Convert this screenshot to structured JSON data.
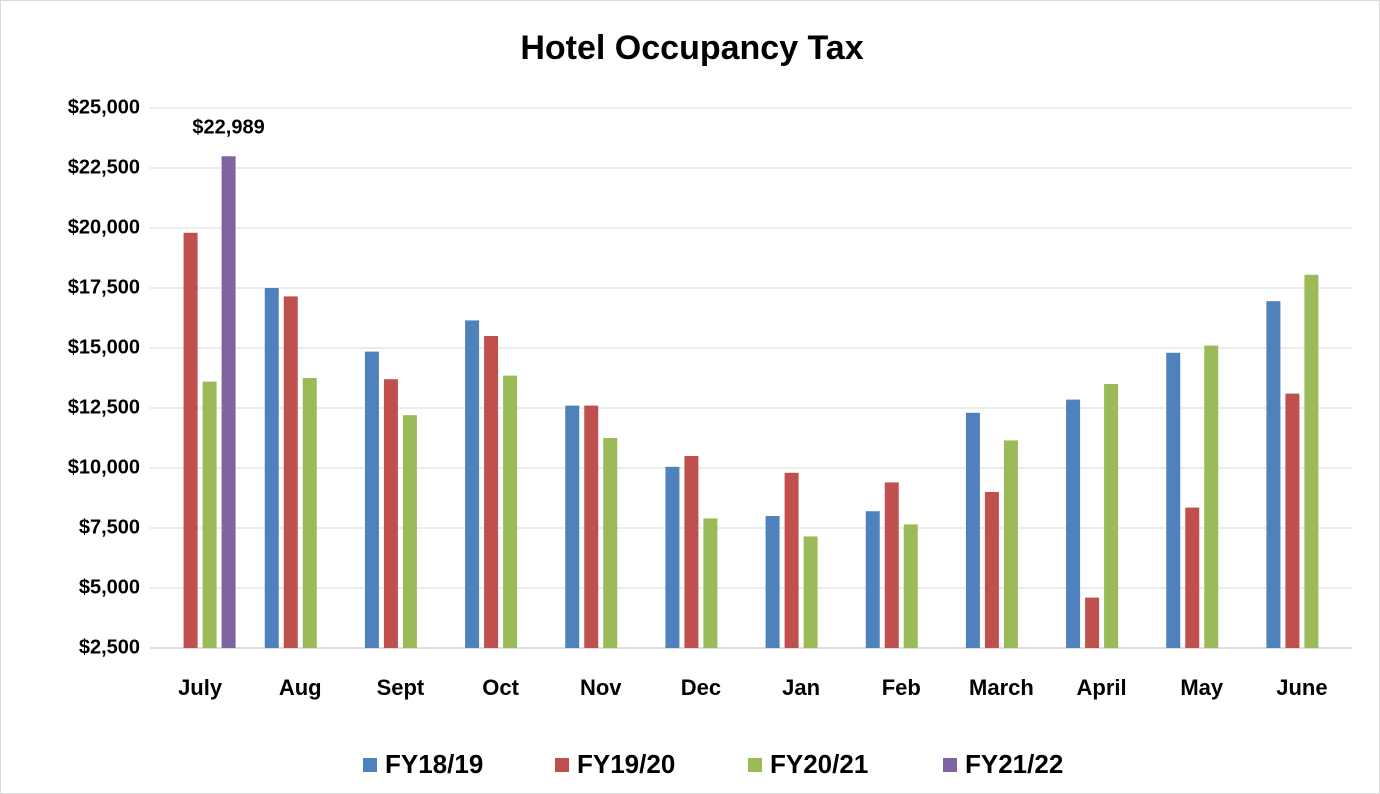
{
  "chart_data": {
    "type": "bar",
    "title": "Hotel Occupancy Tax",
    "categories": [
      "July",
      "Aug",
      "Sept",
      "Oct",
      "Nov",
      "Dec",
      "Jan",
      "Feb",
      "March",
      "April",
      "May",
      "June"
    ],
    "series": [
      {
        "name": "FY18/19",
        "color": "#4f81bd",
        "values": [
          null,
          17500,
          14850,
          16150,
          12600,
          10050,
          8000,
          8200,
          12300,
          12850,
          14800,
          16950
        ]
      },
      {
        "name": "FY19/20",
        "color": "#c0504d",
        "values": [
          19800,
          17150,
          13700,
          15500,
          12600,
          10500,
          9800,
          9400,
          9000,
          4600,
          8350,
          13100
        ]
      },
      {
        "name": "FY20/21",
        "color": "#9bbb59",
        "values": [
          13600,
          13750,
          12200,
          13850,
          11250,
          7900,
          7150,
          7650,
          11150,
          13500,
          15100,
          18050
        ]
      },
      {
        "name": "FY21/22",
        "color": "#8064a2",
        "values": [
          22989,
          null,
          null,
          null,
          null,
          null,
          null,
          null,
          null,
          null,
          null,
          null
        ],
        "value_labels": [
          "$22,989",
          null,
          null,
          null,
          null,
          null,
          null,
          null,
          null,
          null,
          null,
          null
        ]
      }
    ],
    "ylim": [
      2500,
      25000
    ],
    "yticks": [
      {
        "value": 2500,
        "label": "$2,500"
      },
      {
        "value": 5000,
        "label": "$5,000"
      },
      {
        "value": 7500,
        "label": "$7,500"
      },
      {
        "value": 10000,
        "label": "$10,000"
      },
      {
        "value": 12500,
        "label": "$12,500"
      },
      {
        "value": 15000,
        "label": "$15,000"
      },
      {
        "value": 17500,
        "label": "$17,500"
      },
      {
        "value": 20000,
        "label": "$20,000"
      },
      {
        "value": 22500,
        "label": "$22,500"
      },
      {
        "value": 25000,
        "label": "$25,000"
      }
    ],
    "grid": true,
    "legend": "bottom"
  }
}
